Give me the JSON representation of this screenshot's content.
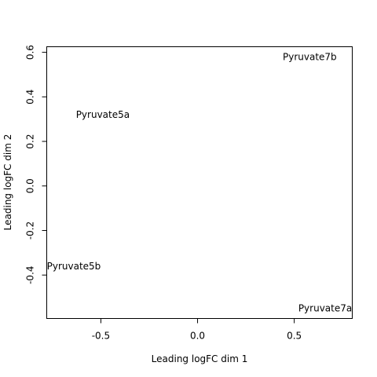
{
  "chart_data": {
    "type": "scatter",
    "title": "",
    "xlabel": "Leading logFC dim 1",
    "ylabel": "Leading logFC dim 2",
    "xlim": [
      -0.78,
      0.8
    ],
    "ylim": [
      -0.595,
      0.625
    ],
    "xticks": [
      -0.5,
      0.0,
      0.5
    ],
    "xtick_labels": [
      "-0.5",
      "0.0",
      "0.5"
    ],
    "yticks": [
      -0.4,
      -0.2,
      0.0,
      0.2,
      0.4,
      0.6
    ],
    "ytick_labels": [
      "-0.4",
      "-0.2",
      "0.0",
      "0.2",
      "0.4",
      "0.6"
    ],
    "grid": false,
    "marker": "sample-name-text",
    "points": [
      {
        "label": "Pyruvate7b",
        "x": 0.58,
        "y": 0.58
      },
      {
        "label": "Pyruvate5a",
        "x": -0.49,
        "y": 0.32
      },
      {
        "label": "Pyruvate5b",
        "x": -0.64,
        "y": -0.36
      },
      {
        "label": "Pyruvate7a",
        "x": 0.66,
        "y": -0.55
      }
    ]
  }
}
